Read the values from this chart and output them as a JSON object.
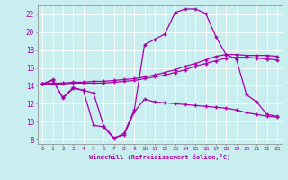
{
  "xlabel": "Windchill (Refroidissement éolien,°C)",
  "background_color": "#c8eef0",
  "line_color": "#aa00aa",
  "grid_color": "#aadddd",
  "xlim": [
    -0.5,
    23.5
  ],
  "ylim": [
    7.5,
    23.0
  ],
  "yticks": [
    8,
    10,
    12,
    14,
    16,
    18,
    20,
    22
  ],
  "xticks": [
    0,
    1,
    2,
    3,
    4,
    5,
    6,
    7,
    8,
    9,
    10,
    11,
    12,
    13,
    14,
    15,
    16,
    17,
    18,
    19,
    20,
    21,
    22,
    23
  ],
  "series": [
    [
      14.2,
      14.7,
      12.6,
      13.7,
      13.5,
      13.2,
      9.5,
      8.2,
      8.5,
      11.1,
      12.5,
      12.2,
      12.1,
      12.0,
      11.9,
      11.8,
      11.7,
      11.6,
      11.5,
      11.3,
      11.0,
      10.8,
      10.6,
      10.5
    ],
    [
      14.2,
      14.3,
      14.3,
      14.4,
      14.4,
      14.5,
      14.5,
      14.6,
      14.7,
      14.8,
      15.0,
      15.2,
      15.5,
      15.8,
      16.2,
      16.5,
      16.9,
      17.3,
      17.5,
      17.5,
      17.4,
      17.4,
      17.4,
      17.3
    ],
    [
      14.2,
      14.2,
      14.2,
      14.3,
      14.3,
      14.3,
      14.3,
      14.4,
      14.5,
      14.6,
      14.8,
      15.0,
      15.2,
      15.5,
      15.8,
      16.2,
      16.5,
      16.8,
      17.1,
      17.2,
      17.2,
      17.1,
      17.0,
      16.9
    ],
    [
      14.2,
      14.6,
      12.7,
      13.8,
      13.5,
      9.6,
      9.4,
      8.1,
      8.7,
      11.3,
      18.6,
      19.2,
      19.8,
      22.2,
      22.6,
      22.6,
      22.1,
      19.5,
      17.5,
      17.0,
      13.0,
      12.2,
      10.8,
      10.6
    ]
  ]
}
